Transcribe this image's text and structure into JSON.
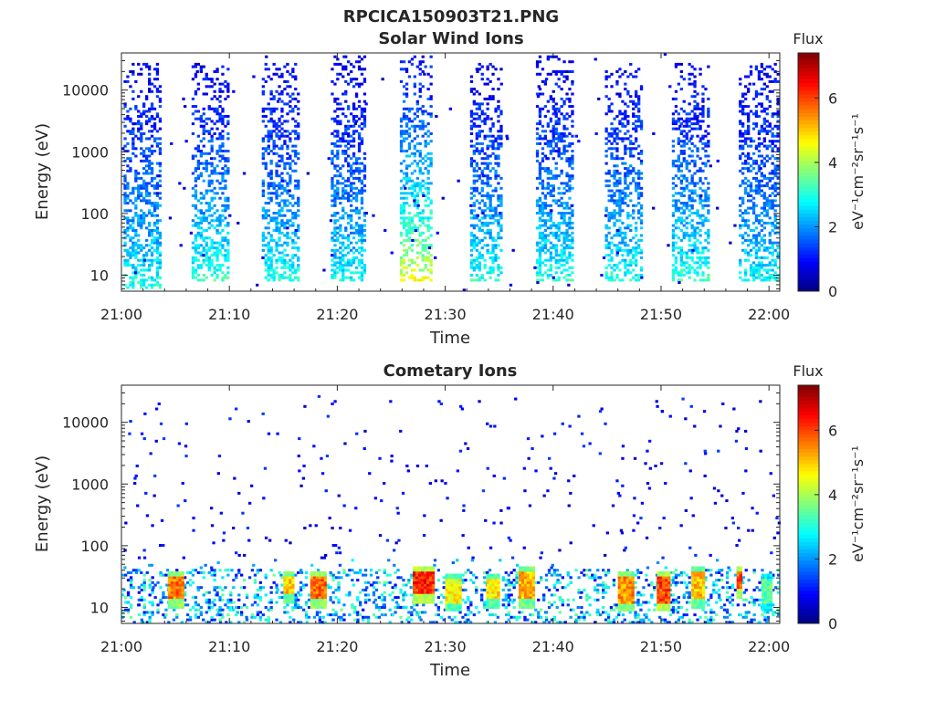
{
  "figure_title": "RPCICA150903T21.PNG",
  "chart_data": [
    {
      "type": "heatmap",
      "title": "Solar Wind Ions",
      "xlabel": "Time",
      "ylabel": "Energy (eV)",
      "x_ticks": [
        "21:00",
        "21:10",
        "21:20",
        "21:30",
        "21:40",
        "21:50",
        "22:00"
      ],
      "x_range_minutes": [
        0,
        61
      ],
      "y_scale": "log",
      "y_range_eV": [
        5.5,
        40000
      ],
      "y_ticks": [
        "10",
        "100",
        "1000",
        "10000"
      ],
      "colorbar": {
        "title": "Flux",
        "label": "eV⁻¹cm⁻²sr⁻¹s⁻¹",
        "range": [
          0,
          7.4
        ],
        "ticks": [
          "0",
          "2",
          "4",
          "6"
        ],
        "colormap": "jet"
      },
      "bursts": [
        {
          "t_start": 0.2,
          "t_end": 3.6,
          "e_min": 6,
          "e_max": 28000,
          "flux_high_E": 0.8,
          "flux_low_E": 3.2
        },
        {
          "t_start": 6.5,
          "t_end": 10.0,
          "e_min": 8,
          "e_max": 28000,
          "flux_high_E": 0.8,
          "flux_low_E": 3.4
        },
        {
          "t_start": 13.0,
          "t_end": 16.3,
          "e_min": 8,
          "e_max": 28000,
          "flux_high_E": 0.8,
          "flux_low_E": 3.2
        },
        {
          "t_start": 19.4,
          "t_end": 22.5,
          "e_min": 8,
          "e_max": 35000,
          "flux_high_E": 0.8,
          "flux_low_E": 3.0
        },
        {
          "t_start": 25.8,
          "t_end": 28.8,
          "e_min": 8,
          "e_max": 38000,
          "flux_high_E": 0.9,
          "flux_low_E": 4.8
        },
        {
          "t_start": 32.3,
          "t_end": 35.3,
          "e_min": 8,
          "e_max": 28000,
          "flux_high_E": 0.8,
          "flux_low_E": 3.2
        },
        {
          "t_start": 38.4,
          "t_end": 41.8,
          "e_min": 8,
          "e_max": 35000,
          "flux_high_E": 0.8,
          "flux_low_E": 3.2
        },
        {
          "t_start": 44.8,
          "t_end": 48.3,
          "e_min": 8,
          "e_max": 28000,
          "flux_high_E": 0.8,
          "flux_low_E": 3.2
        },
        {
          "t_start": 51.0,
          "t_end": 54.5,
          "e_min": 8,
          "e_max": 28000,
          "flux_high_E": 0.8,
          "flux_low_E": 3.4
        },
        {
          "t_start": 57.2,
          "t_end": 60.8,
          "e_min": 8,
          "e_max": 28000,
          "flux_high_E": 0.8,
          "flux_low_E": 3.0
        }
      ]
    },
    {
      "type": "heatmap",
      "title": "Cometary Ions",
      "xlabel": "Time",
      "ylabel": "Energy (eV)",
      "x_ticks": [
        "21:00",
        "21:10",
        "21:20",
        "21:30",
        "21:40",
        "21:50",
        "22:00"
      ],
      "x_range_minutes": [
        0,
        61
      ],
      "y_scale": "log",
      "y_range_eV": [
        5.5,
        40000
      ],
      "y_ticks": [
        "10",
        "100",
        "1000",
        "10000"
      ],
      "colorbar": {
        "title": "Flux",
        "label": "eV⁻¹cm⁻²sr⁻¹s⁻¹",
        "range": [
          0,
          7.4
        ],
        "ticks": [
          "0",
          "2",
          "4",
          "6"
        ],
        "colormap": "jet"
      },
      "hotspots": [
        {
          "t_start": 4.3,
          "t_end": 5.8,
          "e_min": 14,
          "e_max": 33,
          "flux": 6.2
        },
        {
          "t_start": 15.0,
          "t_end": 15.8,
          "e_min": 17,
          "e_max": 33,
          "flux": 5.6
        },
        {
          "t_start": 17.5,
          "t_end": 19.0,
          "e_min": 14,
          "e_max": 33,
          "flux": 6.3
        },
        {
          "t_start": 27.0,
          "t_end": 29.0,
          "e_min": 17,
          "e_max": 40,
          "flux": 6.8
        },
        {
          "t_start": 30.0,
          "t_end": 31.3,
          "e_min": 12,
          "e_max": 28,
          "flux": 5.2
        },
        {
          "t_start": 33.8,
          "t_end": 35.0,
          "e_min": 14,
          "e_max": 28,
          "flux": 5.4
        },
        {
          "t_start": 36.8,
          "t_end": 38.2,
          "e_min": 14,
          "e_max": 40,
          "flux": 5.8
        },
        {
          "t_start": 46.0,
          "t_end": 47.5,
          "e_min": 12,
          "e_max": 33,
          "flux": 6.0
        },
        {
          "t_start": 49.6,
          "t_end": 50.7,
          "e_min": 12,
          "e_max": 33,
          "flux": 6.6
        },
        {
          "t_start": 52.8,
          "t_end": 54.0,
          "e_min": 14,
          "e_max": 40,
          "flux": 5.6
        },
        {
          "t_start": 57.0,
          "t_end": 57.4,
          "e_min": 20,
          "e_max": 40,
          "flux": 6.5
        },
        {
          "t_start": 59.3,
          "t_end": 60.3,
          "e_min": 12,
          "e_max": 28,
          "flux": 4.0
        }
      ]
    }
  ]
}
